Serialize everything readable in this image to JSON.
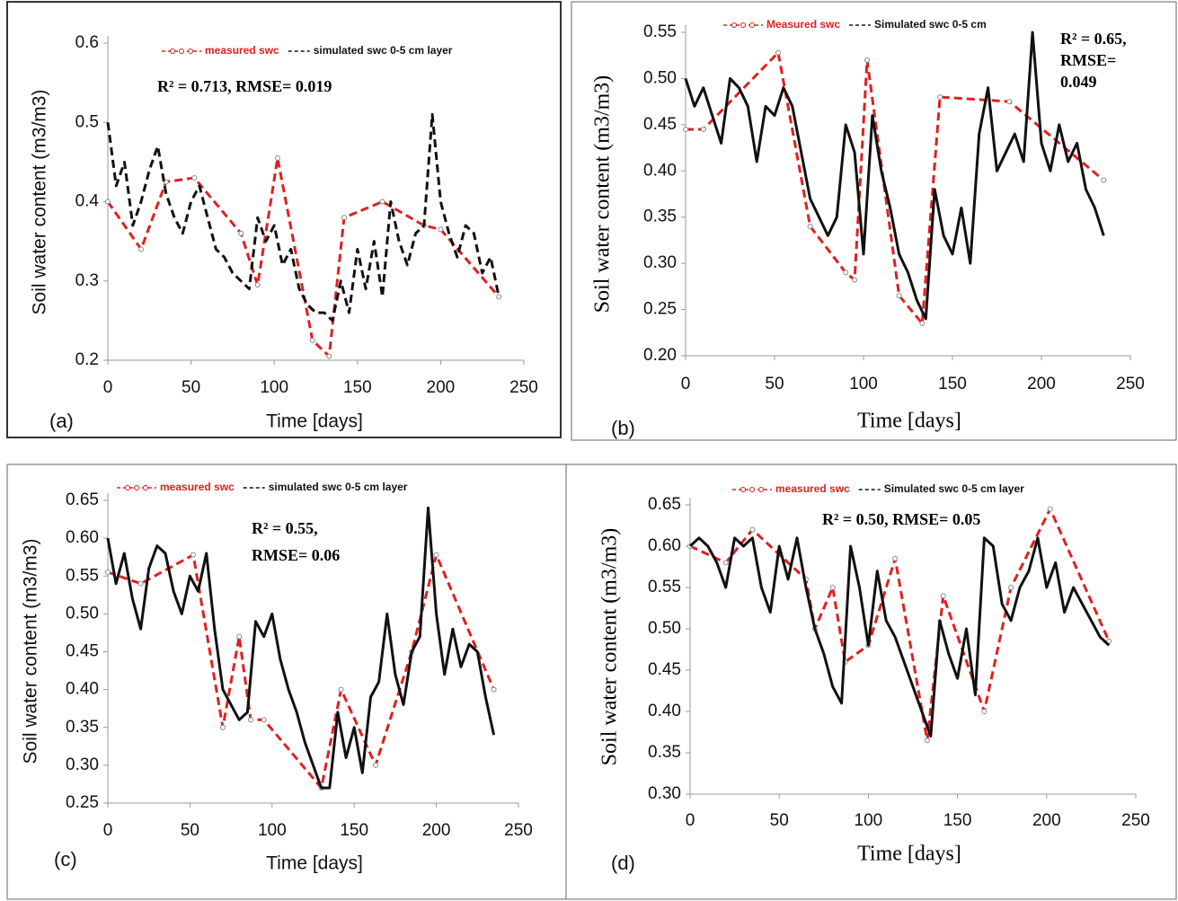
{
  "chart_data": [
    {
      "type": "line",
      "panel_label": "(a)",
      "x_label": "Time [days]",
      "y_label": "Soil water content (m3/m3)",
      "annotation": [
        "R² = 0.713, RMSE= 0.019"
      ],
      "xlim": [
        0,
        250
      ],
      "xticks": [
        0,
        50,
        100,
        150,
        200,
        250
      ],
      "ylim": [
        0.2,
        0.6
      ],
      "yticks": [
        0.2,
        0.3,
        0.4,
        0.5,
        0.6
      ],
      "series": [
        {
          "name": "measured swc",
          "color": "#e02020",
          "line_style": "dashed",
          "markers": true,
          "x": [
            0,
            20,
            35,
            52,
            80,
            90,
            102,
            123,
            133,
            142,
            165,
            190,
            200,
            235
          ],
          "values": [
            0.4,
            0.34,
            0.425,
            0.43,
            0.36,
            0.295,
            0.455,
            0.225,
            0.205,
            0.38,
            0.4,
            0.37,
            0.365,
            0.28
          ]
        },
        {
          "name": "simulated swc 0-5 cm layer",
          "color": "#111111",
          "line_style": "dashed",
          "markers": false,
          "x": [
            0,
            5,
            10,
            15,
            20,
            25,
            30,
            35,
            40,
            45,
            50,
            55,
            60,
            65,
            70,
            75,
            80,
            85,
            90,
            95,
            100,
            105,
            110,
            115,
            120,
            125,
            130,
            135,
            140,
            145,
            150,
            155,
            160,
            165,
            170,
            175,
            180,
            185,
            190,
            195,
            200,
            205,
            210,
            215,
            220,
            225,
            230,
            235
          ],
          "values": [
            0.5,
            0.42,
            0.45,
            0.37,
            0.4,
            0.44,
            0.47,
            0.41,
            0.38,
            0.36,
            0.4,
            0.42,
            0.38,
            0.34,
            0.33,
            0.31,
            0.3,
            0.29,
            0.38,
            0.35,
            0.37,
            0.32,
            0.34,
            0.29,
            0.27,
            0.26,
            0.26,
            0.25,
            0.3,
            0.26,
            0.34,
            0.29,
            0.35,
            0.28,
            0.4,
            0.35,
            0.32,
            0.36,
            0.37,
            0.51,
            0.4,
            0.36,
            0.33,
            0.37,
            0.36,
            0.31,
            0.33,
            0.28
          ]
        }
      ]
    },
    {
      "type": "line",
      "panel_label": "(b)",
      "x_label": "Time [days]",
      "y_label": "Soil water content (m3/m3)",
      "annotation": [
        "R² = 0.65,",
        "RMSE=",
        "0.049"
      ],
      "xlim": [
        0,
        250
      ],
      "xticks": [
        0,
        50,
        100,
        150,
        200,
        250
      ],
      "ylim": [
        0.2,
        0.55
      ],
      "yticks": [
        {
          "value": 0.2,
          "label": "0.20"
        },
        0.25,
        {
          "value": 0.3,
          "label": "0.30"
        },
        0.35,
        {
          "value": 0.4,
          "label": "0.40"
        },
        0.45,
        {
          "value": 0.5,
          "label": "0.50"
        },
        0.55
      ],
      "series": [
        {
          "name": "Measured swc",
          "color": "#e02020",
          "line_style": "dashed",
          "markers": true,
          "x": [
            0,
            10,
            52,
            70,
            90,
            95,
            102,
            120,
            133,
            143,
            182,
            235
          ],
          "values": [
            0.445,
            0.445,
            0.528,
            0.34,
            0.29,
            0.282,
            0.52,
            0.265,
            0.235,
            0.48,
            0.475,
            0.39
          ]
        },
        {
          "name": "Simulated swc 0-5 cm",
          "color": "#111111",
          "line_style": "solid",
          "markers": false,
          "x": [
            0,
            5,
            10,
            15,
            20,
            25,
            30,
            35,
            40,
            45,
            50,
            55,
            60,
            65,
            70,
            75,
            80,
            85,
            90,
            95,
            100,
            105,
            110,
            115,
            120,
            125,
            130,
            135,
            140,
            145,
            150,
            155,
            160,
            165,
            170,
            175,
            180,
            185,
            190,
            195,
            200,
            205,
            210,
            215,
            220,
            225,
            230,
            235
          ],
          "values": [
            0.5,
            0.47,
            0.49,
            0.46,
            0.43,
            0.5,
            0.49,
            0.47,
            0.41,
            0.47,
            0.46,
            0.49,
            0.47,
            0.42,
            0.37,
            0.35,
            0.33,
            0.35,
            0.45,
            0.42,
            0.31,
            0.46,
            0.4,
            0.36,
            0.31,
            0.29,
            0.26,
            0.24,
            0.38,
            0.33,
            0.31,
            0.36,
            0.3,
            0.44,
            0.49,
            0.4,
            0.42,
            0.44,
            0.41,
            0.55,
            0.43,
            0.4,
            0.45,
            0.41,
            0.43,
            0.38,
            0.36,
            0.33
          ]
        }
      ]
    },
    {
      "type": "line",
      "panel_label": "(c)",
      "x_label": "Time [days]",
      "y_label": "Soil water content (m3/m3)",
      "annotation": [
        "R² = 0.55,",
        "RMSE= 0.06"
      ],
      "xlim": [
        0,
        250
      ],
      "xticks": [
        0,
        50,
        100,
        150,
        200,
        250
      ],
      "ylim": [
        0.25,
        0.65
      ],
      "yticks": [
        0.25,
        {
          "value": 0.3,
          "label": "0.30"
        },
        0.35,
        {
          "value": 0.4,
          "label": "0.40"
        },
        0.45,
        {
          "value": 0.5,
          "label": "0.50"
        },
        0.55,
        {
          "value": 0.6,
          "label": "0.60"
        },
        0.65
      ],
      "series": [
        {
          "name": "measured swc",
          "color": "#e02020",
          "line_style": "dashed",
          "markers": true,
          "x": [
            0,
            20,
            52,
            70,
            80,
            87,
            95,
            130,
            142,
            163,
            185,
            200,
            235
          ],
          "values": [
            0.555,
            0.54,
            0.578,
            0.35,
            0.47,
            0.36,
            0.36,
            0.27,
            0.4,
            0.3,
            0.45,
            0.578,
            0.4
          ]
        },
        {
          "name": "simulated swc 0-5 cm layer",
          "color": "#111111",
          "line_style": "solid",
          "markers": false,
          "x": [
            0,
            5,
            10,
            15,
            20,
            25,
            30,
            35,
            40,
            45,
            50,
            55,
            60,
            65,
            70,
            75,
            80,
            85,
            90,
            95,
            100,
            105,
            110,
            115,
            120,
            125,
            130,
            135,
            140,
            145,
            150,
            155,
            160,
            165,
            170,
            175,
            180,
            185,
            190,
            195,
            200,
            205,
            210,
            215,
            220,
            225,
            230,
            235
          ],
          "values": [
            0.6,
            0.54,
            0.58,
            0.52,
            0.48,
            0.56,
            0.59,
            0.58,
            0.53,
            0.5,
            0.55,
            0.53,
            0.58,
            0.48,
            0.4,
            0.38,
            0.36,
            0.37,
            0.49,
            0.47,
            0.5,
            0.44,
            0.4,
            0.37,
            0.33,
            0.3,
            0.27,
            0.27,
            0.37,
            0.31,
            0.35,
            0.29,
            0.39,
            0.41,
            0.5,
            0.42,
            0.38,
            0.45,
            0.47,
            0.64,
            0.5,
            0.42,
            0.48,
            0.43,
            0.46,
            0.45,
            0.39,
            0.34
          ]
        }
      ]
    },
    {
      "type": "line",
      "panel_label": "(d)",
      "x_label": "Time [days]",
      "y_label": "Soil water content (m3/m3)",
      "annotation": [
        "R² = 0.50, RMSE= 0.05"
      ],
      "xlim": [
        0,
        250
      ],
      "xticks": [
        0,
        50,
        100,
        150,
        200,
        250
      ],
      "ylim": [
        0.3,
        0.65
      ],
      "yticks": [
        {
          "value": 0.3,
          "label": "0.30"
        },
        0.35,
        {
          "value": 0.4,
          "label": "0.40"
        },
        0.45,
        {
          "value": 0.5,
          "label": "0.50"
        },
        0.55,
        {
          "value": 0.6,
          "label": "0.60"
        },
        0.65
      ],
      "series": [
        {
          "name": "measured swc",
          "color": "#e02020",
          "line_style": "dashed",
          "markers": true,
          "x": [
            0,
            20,
            35,
            65,
            70,
            80,
            87,
            100,
            115,
            133,
            142,
            165,
            180,
            202,
            235
          ],
          "values": [
            0.6,
            0.58,
            0.62,
            0.56,
            0.5,
            0.55,
            0.46,
            0.48,
            0.585,
            0.365,
            0.54,
            0.4,
            0.55,
            0.645,
            0.485
          ]
        },
        {
          "name": "Simulated swc 0-5 cm layer",
          "color": "#111111",
          "line_style": "solid",
          "markers": false,
          "x": [
            0,
            5,
            10,
            15,
            20,
            25,
            30,
            35,
            40,
            45,
            50,
            55,
            60,
            65,
            70,
            75,
            80,
            85,
            90,
            95,
            100,
            105,
            110,
            115,
            120,
            125,
            130,
            135,
            140,
            145,
            150,
            155,
            160,
            165,
            170,
            175,
            180,
            185,
            190,
            195,
            200,
            205,
            210,
            215,
            220,
            225,
            230,
            235
          ],
          "values": [
            0.6,
            0.61,
            0.6,
            0.58,
            0.55,
            0.61,
            0.6,
            0.61,
            0.55,
            0.52,
            0.6,
            0.56,
            0.61,
            0.55,
            0.5,
            0.47,
            0.43,
            0.41,
            0.6,
            0.55,
            0.48,
            0.57,
            0.51,
            0.49,
            0.46,
            0.43,
            0.4,
            0.37,
            0.51,
            0.47,
            0.44,
            0.5,
            0.42,
            0.61,
            0.6,
            0.53,
            0.51,
            0.55,
            0.57,
            0.61,
            0.55,
            0.58,
            0.52,
            0.55,
            0.53,
            0.51,
            0.49,
            0.48
          ]
        }
      ]
    }
  ]
}
